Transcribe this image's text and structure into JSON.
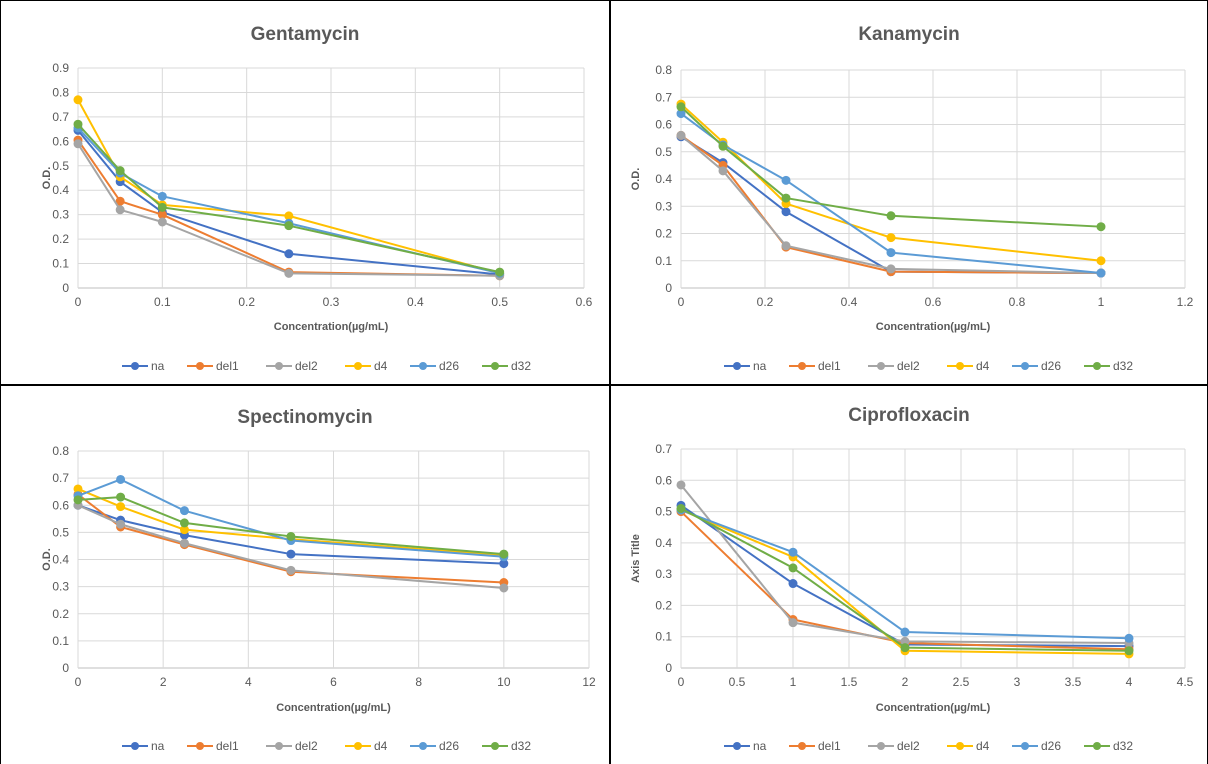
{
  "colors": {
    "na": "#4472c4",
    "del1": "#ed7d31",
    "del2": "#a5a5a5",
    "d4": "#ffc000",
    "d26": "#5b9bd5",
    "d32": "#70ad47"
  },
  "chart_data": [
    {
      "type": "line",
      "title": "Gentamycin",
      "xlabel": "Concentration(µg/mL)",
      "ylabel": "O.D.",
      "xlim": [
        0,
        0.6
      ],
      "ylim": [
        0,
        0.9
      ],
      "xticks": [
        "0",
        "0.1",
        "0.2",
        "0.3",
        "0.4",
        "0.5",
        "0.6"
      ],
      "yticks": [
        "0",
        "0.1",
        "0.2",
        "0.3",
        "0.4",
        "0.5",
        "0.6",
        "0.7",
        "0.8",
        "0.9"
      ],
      "legend_position": "bottom",
      "grid": true,
      "x": [
        0,
        0.05,
        0.1,
        0.25,
        0.5
      ],
      "series": [
        {
          "name": "na",
          "values": [
            0.645,
            0.435,
            0.31,
            0.14,
            0.055
          ]
        },
        {
          "name": "del1",
          "values": [
            0.605,
            0.355,
            0.3,
            0.065,
            0.05
          ]
        },
        {
          "name": "del2",
          "values": [
            0.59,
            0.32,
            0.27,
            0.06,
            0.05
          ]
        },
        {
          "name": "d4",
          "values": [
            0.77,
            0.455,
            0.34,
            0.295,
            0.06
          ]
        },
        {
          "name": "d26",
          "values": [
            0.655,
            0.47,
            0.375,
            0.265,
            0.06
          ]
        },
        {
          "name": "d32",
          "values": [
            0.67,
            0.48,
            0.33,
            0.255,
            0.065
          ]
        }
      ]
    },
    {
      "type": "line",
      "title": "Kanamycin",
      "xlabel": "Concentration(µg/mL)",
      "ylabel": "O.D.",
      "xlim": [
        0,
        1.2
      ],
      "ylim": [
        0,
        0.8
      ],
      "xticks": [
        "0",
        "0.2",
        "0.4",
        "0.6",
        "0.8",
        "1",
        "1.2"
      ],
      "yticks": [
        "0",
        "0.1",
        "0.2",
        "0.3",
        "0.4",
        "0.5",
        "0.6",
        "0.7",
        "0.8"
      ],
      "legend_position": "bottom",
      "grid": true,
      "x": [
        0,
        0.1,
        0.25,
        0.5,
        1
      ],
      "series": [
        {
          "name": "na",
          "values": [
            0.555,
            0.46,
            0.28,
            0.06,
            0.055
          ]
        },
        {
          "name": "del1",
          "values": [
            0.56,
            0.45,
            0.15,
            0.06,
            0.055
          ]
        },
        {
          "name": "del2",
          "values": [
            0.56,
            0.43,
            0.155,
            0.07,
            0.055
          ]
        },
        {
          "name": "d4",
          "values": [
            0.675,
            0.535,
            0.31,
            0.185,
            0.1
          ]
        },
        {
          "name": "d26",
          "values": [
            0.64,
            0.525,
            0.395,
            0.13,
            0.055
          ]
        },
        {
          "name": "d32",
          "values": [
            0.665,
            0.52,
            0.33,
            0.265,
            0.225
          ]
        }
      ]
    },
    {
      "type": "line",
      "title": "Spectinomycin",
      "xlabel": "Concentration(µg/mL)",
      "ylabel": "O.D.",
      "xlim": [
        0,
        12
      ],
      "ylim": [
        0,
        0.8
      ],
      "xticks": [
        "0",
        "2",
        "4",
        "6",
        "8",
        "10",
        "12"
      ],
      "yticks": [
        "0",
        "0.1",
        "0.2",
        "0.3",
        "0.4",
        "0.5",
        "0.6",
        "0.7",
        "0.8"
      ],
      "legend_position": "bottom",
      "grid": true,
      "x": [
        0,
        1,
        2.5,
        5,
        10
      ],
      "series": [
        {
          "name": "na",
          "values": [
            0.6,
            0.545,
            0.49,
            0.42,
            0.385
          ]
        },
        {
          "name": "del1",
          "values": [
            0.64,
            0.52,
            0.455,
            0.355,
            0.315
          ]
        },
        {
          "name": "del2",
          "values": [
            0.6,
            0.53,
            0.46,
            0.36,
            0.295
          ]
        },
        {
          "name": "d4",
          "values": [
            0.66,
            0.595,
            0.51,
            0.475,
            0.415
          ]
        },
        {
          "name": "d26",
          "values": [
            0.635,
            0.695,
            0.58,
            0.47,
            0.41
          ]
        },
        {
          "name": "d32",
          "values": [
            0.62,
            0.63,
            0.535,
            0.485,
            0.42
          ]
        }
      ]
    },
    {
      "type": "line",
      "title": "Ciprofloxacin",
      "xlabel": "Concentration(µg/mL)",
      "ylabel": "Axis Title",
      "xlim": [
        0,
        4.5
      ],
      "ylim": [
        0,
        0.7
      ],
      "xticks": [
        "0",
        "0.5",
        "1",
        "1.5",
        "2",
        "2.5",
        "3",
        "3.5",
        "4",
        "4.5"
      ],
      "yticks": [
        "0",
        "0.1",
        "0.2",
        "0.3",
        "0.4",
        "0.5",
        "0.6",
        "0.7"
      ],
      "legend_position": "bottom",
      "grid": true,
      "x": [
        0,
        1,
        2,
        4
      ],
      "series": [
        {
          "name": "na",
          "values": [
            0.52,
            0.27,
            0.075,
            0.07
          ]
        },
        {
          "name": "del1",
          "values": [
            0.5,
            0.155,
            0.08,
            0.06
          ]
        },
        {
          "name": "del2",
          "values": [
            0.585,
            0.145,
            0.085,
            0.08
          ]
        },
        {
          "name": "d4",
          "values": [
            0.505,
            0.355,
            0.055,
            0.045
          ]
        },
        {
          "name": "d26",
          "values": [
            0.505,
            0.37,
            0.115,
            0.095
          ]
        },
        {
          "name": "d32",
          "values": [
            0.51,
            0.32,
            0.065,
            0.055
          ]
        }
      ]
    }
  ]
}
